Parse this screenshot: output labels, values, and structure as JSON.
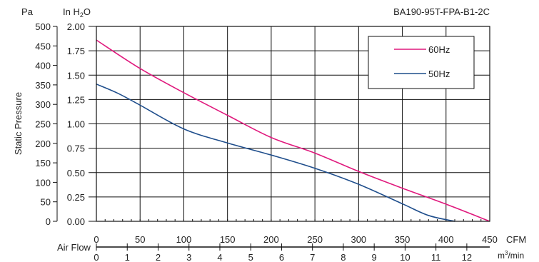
{
  "header": {
    "left_unit": "Pa",
    "right_unit_main": "In H",
    "right_unit_sub": "2",
    "right_unit_tail": "O",
    "model": "BA190-95T-FPA-B1-2C"
  },
  "axes": {
    "ylabel": "Static Pressure",
    "airflow_label": "Air Flow",
    "cfm_unit": "CFM",
    "m3_unit_main": "m",
    "m3_unit_sup": "3",
    "m3_unit_tail": "/min"
  },
  "chart_data": {
    "type": "line",
    "title": "BA190-95T-FPA-B1-2C",
    "xlabel": "Air Flow",
    "ylabel": "Static Pressure",
    "x_unit": "CFM",
    "y_unit": "Pa",
    "xlim": [
      0,
      450
    ],
    "ylim": [
      0,
      500
    ],
    "grid": true,
    "legend_position": "top-right",
    "x_ticks": [
      "0",
      "50",
      "100",
      "150",
      "200",
      "250",
      "300",
      "350",
      "400",
      "450"
    ],
    "y_ticks_pa": [
      "0",
      "50",
      "100",
      "150",
      "200",
      "250",
      "300",
      "350",
      "400",
      "450",
      "500"
    ],
    "y_ticks_inh2o": [
      "0.00",
      "0.25",
      "0.50",
      "0.75",
      "1.00",
      "1.25",
      "1.50",
      "1.75",
      "2.00"
    ],
    "x2_ticks_m3min": [
      "0",
      "1",
      "2",
      "3",
      "4",
      "5",
      "6",
      "7",
      "8",
      "9",
      "10",
      "11",
      "12"
    ],
    "series": [
      {
        "name": "60Hz",
        "color": "#e0197d",
        "x": [
          0,
          50,
          100,
          150,
          200,
          250,
          300,
          350,
          400,
          450
        ],
        "y": [
          465,
          392,
          330,
          272,
          215,
          175,
          128,
          85,
          44,
          0
        ]
      },
      {
        "name": "50Hz",
        "color": "#1f4e8c",
        "x": [
          0,
          25,
          50,
          100,
          150,
          200,
          250,
          300,
          350,
          380,
          410
        ],
        "y": [
          352,
          328,
          298,
          237,
          201,
          170,
          136,
          95,
          45,
          15,
          0
        ]
      }
    ]
  }
}
